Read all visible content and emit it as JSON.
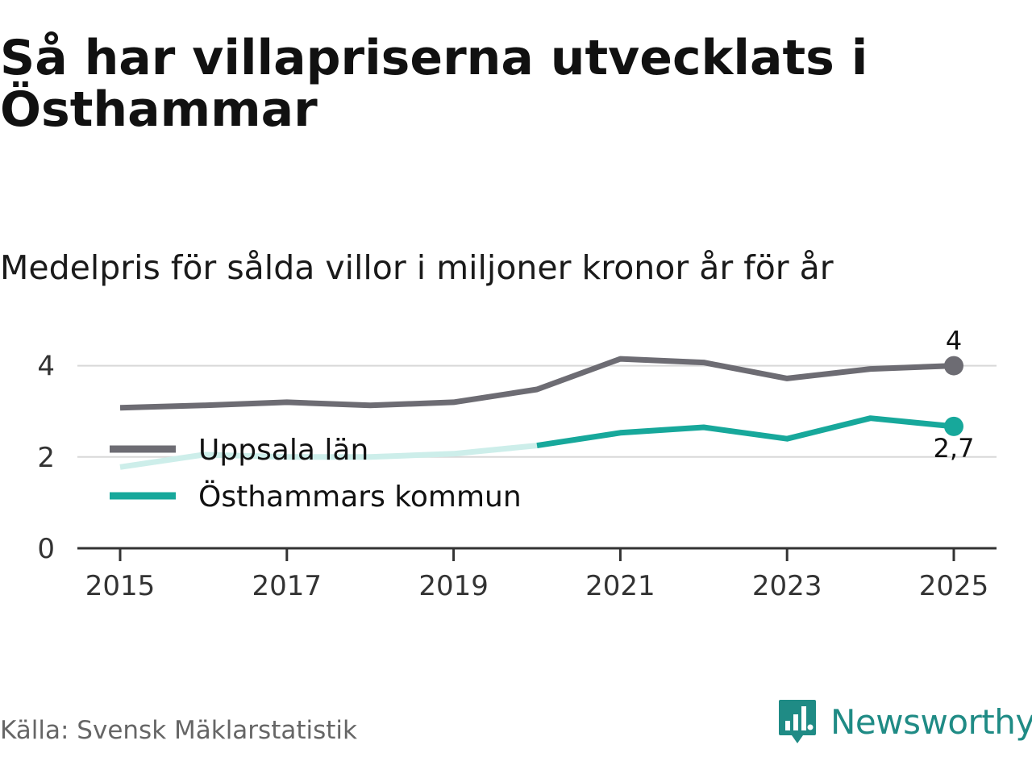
{
  "title": "Så har villapriserna utvecklats i Östhammar",
  "subtitle": "Medelpris för sålda villor i miljoner kronor år för år",
  "source": "Källa: Svensk Mäklarstatistik",
  "logo": {
    "text": "Newsworthy",
    "icon": "newsworthy-logo-icon"
  },
  "colors": {
    "uppsala": "#6d6c73",
    "osthammar": "#17a89b",
    "osthammar_faded": "#cdeeea",
    "grid": "#d8d8d8",
    "axis": "#333333",
    "logo": "#1f8b85"
  },
  "chart_data": {
    "type": "line",
    "title": "Så har villapriserna utvecklats i Östhammar",
    "subtitle": "Medelpris för sålda villor i miljoner kronor år för år",
    "x": [
      2015,
      2016,
      2017,
      2018,
      2019,
      2020,
      2021,
      2022,
      2023,
      2024,
      2025
    ],
    "x_ticks": [
      "2015",
      "2017",
      "2019",
      "2021",
      "2023",
      "2025"
    ],
    "y_ticks": [
      "0",
      "2",
      "4"
    ],
    "ylim": [
      0,
      4.5
    ],
    "grid": true,
    "legend_position": "left",
    "series": [
      {
        "name": "Uppsala län",
        "values": [
          3.08,
          3.13,
          3.2,
          3.13,
          3.2,
          3.48,
          4.15,
          4.07,
          3.72,
          3.93,
          4.0
        ],
        "end_label": "4"
      },
      {
        "name": "Östhammars kommun",
        "values": [
          1.78,
          2.05,
          2.0,
          2.0,
          2.07,
          2.25,
          2.53,
          2.65,
          2.4,
          2.85,
          2.67
        ],
        "end_label": "2,7",
        "faded_until": 2020
      }
    ]
  }
}
